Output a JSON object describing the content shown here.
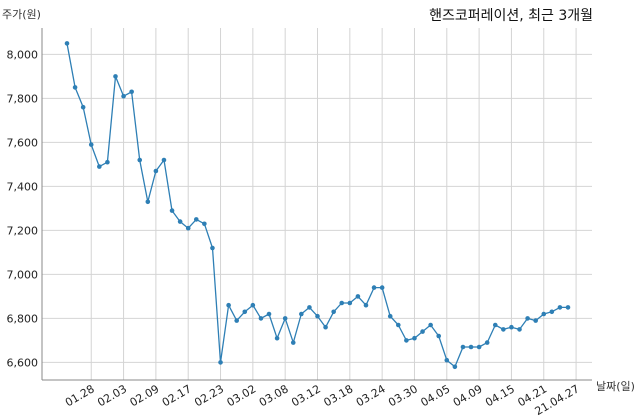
{
  "chart_data": {
    "type": "line",
    "title": "핸즈코퍼레이션, 최근 3개월",
    "ylabel": "주가(원)",
    "xlabel": "날짜(일)",
    "ylim": [
      6520,
      8120
    ],
    "y_ticks": [
      6600,
      6800,
      7000,
      7200,
      7400,
      7600,
      7800,
      8000
    ],
    "y_tick_labels": [
      "6,600",
      "6,800",
      "7,000",
      "7,200",
      "7,400",
      "7,600",
      "7,800",
      "8,000"
    ],
    "x_tick_labels": [
      "01.28",
      "02.03",
      "02.09",
      "02.17",
      "02.23",
      "03.02",
      "03.08",
      "03.12",
      "03.18",
      "03.24",
      "03.30",
      "04.05",
      "04.09",
      "04.15",
      "04.21",
      "21.04.27"
    ],
    "x_tick_indices": [
      3,
      7,
      11,
      15,
      19,
      23,
      27,
      31,
      35,
      39,
      43,
      47,
      51,
      55,
      59,
      63
    ],
    "grid": true,
    "series": [
      {
        "color": "#2e7fb5",
        "values": [
          8050,
          7850,
          7760,
          7590,
          7490,
          7510,
          7900,
          7810,
          7830,
          7520,
          7330,
          7470,
          7520,
          7290,
          7240,
          7210,
          7250,
          7230,
          7120,
          6600,
          6860,
          6790,
          6830,
          6860,
          6800,
          6820,
          6710,
          6800,
          6690,
          6820,
          6850,
          6810,
          6760,
          6830,
          6870,
          6870,
          6900,
          6860,
          6940,
          6940,
          6810,
          6770,
          6700,
          6710,
          6740,
          6770,
          6720,
          6610,
          6580,
          6670,
          6670,
          6670,
          6690,
          6770,
          6750,
          6760,
          6750,
          6800,
          6790,
          6820,
          6830,
          6850,
          6850
        ]
      }
    ]
  }
}
